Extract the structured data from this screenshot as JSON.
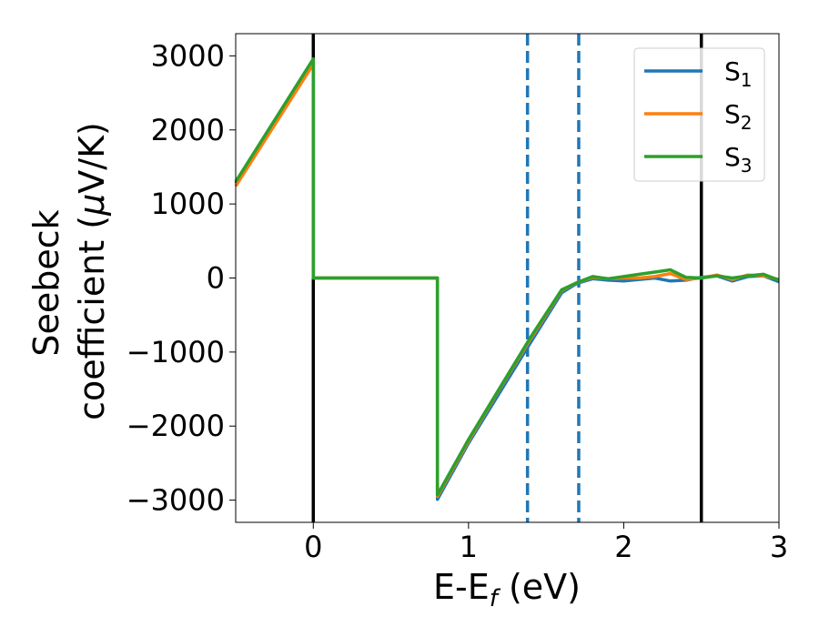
{
  "chart_data": {
    "type": "line",
    "xlabel_main": "E-E",
    "xlabel_sub": "f",
    "xlabel_tail": " (eV)",
    "ylabel_line1": "Seebeck",
    "ylabel_line2_a": "coefficient  (",
    "ylabel_line2_mu": "μ",
    "ylabel_line2_b": "V/K)",
    "xlim": [
      -0.5,
      3.0
    ],
    "ylim": [
      -3300,
      3300
    ],
    "x_ticks": [
      0,
      1,
      2,
      3
    ],
    "x_tick_labels": [
      "0",
      "1",
      "2",
      "3"
    ],
    "y_ticks": [
      3000,
      2000,
      1000,
      0,
      -1000,
      -2000,
      -3000
    ],
    "y_tick_labels": [
      "3000",
      "2000",
      "1000",
      "0",
      "−1000",
      "−2000",
      "−3000"
    ],
    "grid": false,
    "legend_position": "top-right",
    "vertical_lines": [
      {
        "x": 0.0,
        "style": "solid",
        "color": "#000000"
      },
      {
        "x": 2.5,
        "style": "solid",
        "color": "#000000"
      },
      {
        "x": 1.38,
        "style": "dashed",
        "color": "#1f77b4"
      },
      {
        "x": 1.71,
        "style": "dashed",
        "color": "#1f77b4"
      }
    ],
    "series": [
      {
        "name": "S",
        "sub": "1",
        "color": "#1f77b4",
        "x": [
          -0.5,
          0.0,
          0.0,
          0.8,
          0.8,
          1.0,
          1.2,
          1.4,
          1.6,
          1.7,
          1.8,
          1.9,
          2.0,
          2.1,
          2.2,
          2.3,
          2.4,
          2.5,
          2.6,
          2.7,
          2.8,
          2.9,
          3.0
        ],
        "y": [
          1280,
          2920,
          0,
          0,
          -2990,
          -2230,
          -1550,
          -870,
          -200,
          -70,
          -10,
          -30,
          -40,
          -20,
          0,
          -40,
          -30,
          10,
          30,
          -40,
          20,
          30,
          -50
        ]
      },
      {
        "name": "S",
        "sub": "2",
        "color": "#ff7f0e",
        "x": [
          -0.5,
          0.0,
          0.0,
          0.8,
          0.8,
          1.0,
          1.2,
          1.4,
          1.6,
          1.7,
          1.8,
          1.9,
          2.0,
          2.1,
          2.2,
          2.3,
          2.4,
          2.5,
          2.6,
          2.7,
          2.8,
          2.9,
          3.0
        ],
        "y": [
          1240,
          2890,
          0,
          0,
          -2950,
          -2200,
          -1500,
          -820,
          -170,
          -60,
          10,
          -10,
          0,
          0,
          20,
          60,
          -20,
          0,
          40,
          -20,
          40,
          30,
          -20
        ]
      },
      {
        "name": "S",
        "sub": "3",
        "color": "#2ca02c",
        "x": [
          -0.5,
          0.0,
          0.0,
          0.8,
          0.8,
          1.0,
          1.2,
          1.4,
          1.6,
          1.7,
          1.8,
          1.9,
          2.0,
          2.1,
          2.2,
          2.3,
          2.4,
          2.5,
          2.6,
          2.7,
          2.8,
          2.9,
          3.0
        ],
        "y": [
          1300,
          2960,
          0,
          0,
          -2930,
          -2180,
          -1490,
          -800,
          -160,
          -60,
          20,
          -10,
          20,
          50,
          80,
          110,
          10,
          0,
          30,
          0,
          30,
          50,
          -30
        ]
      }
    ]
  }
}
